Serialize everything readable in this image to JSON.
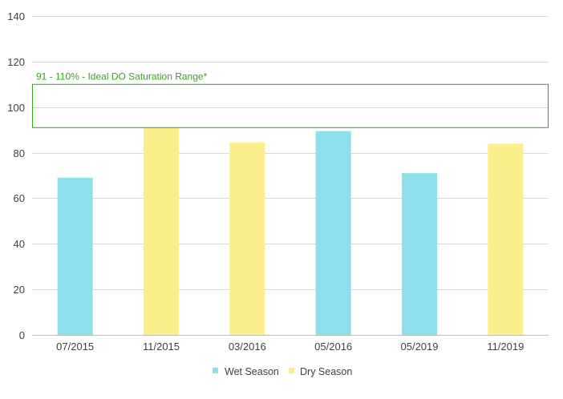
{
  "chart_data": {
    "type": "bar",
    "categories": [
      "07/2015",
      "11/2015",
      "03/2016",
      "05/2016",
      "05/2019",
      "11/2019"
    ],
    "values": [
      69,
      91,
      84.5,
      89.5,
      71,
      84
    ],
    "seasons": [
      "Wet Season",
      "Dry Season",
      "Dry Season",
      "Wet Season",
      "Wet Season",
      "Dry Season"
    ],
    "series": [
      {
        "name": "Wet Season",
        "color": "#8ee0ec"
      },
      {
        "name": "Dry Season",
        "color": "#fbef8c"
      }
    ],
    "ylim": [
      0,
      140
    ],
    "yticks": [
      0,
      20,
      40,
      60,
      80,
      100,
      120,
      140
    ],
    "grid": true,
    "legend_position": "bottom",
    "reference_band": {
      "label": "91 - 110% - Ideal DO Saturation Range*",
      "low": 91,
      "high": 110,
      "color": "#3aa01e"
    }
  }
}
